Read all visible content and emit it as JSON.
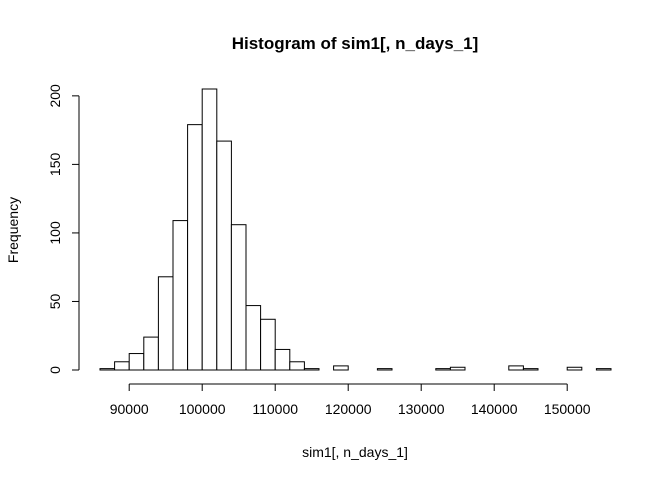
{
  "chart_data": {
    "type": "bar",
    "title": "Histogram of sim1[, n_days_1]",
    "xlabel": "sim1[, n_days_1]",
    "ylabel": "Frequency",
    "bin_width": 2000,
    "bins": [
      {
        "start": 86000,
        "end": 88000,
        "count": 1
      },
      {
        "start": 88000,
        "end": 90000,
        "count": 6
      },
      {
        "start": 90000,
        "end": 92000,
        "count": 12
      },
      {
        "start": 92000,
        "end": 94000,
        "count": 24
      },
      {
        "start": 94000,
        "end": 96000,
        "count": 68
      },
      {
        "start": 96000,
        "end": 98000,
        "count": 109
      },
      {
        "start": 98000,
        "end": 100000,
        "count": 179
      },
      {
        "start": 100000,
        "end": 102000,
        "count": 205
      },
      {
        "start": 102000,
        "end": 104000,
        "count": 167
      },
      {
        "start": 104000,
        "end": 106000,
        "count": 106
      },
      {
        "start": 106000,
        "end": 108000,
        "count": 47
      },
      {
        "start": 108000,
        "end": 110000,
        "count": 37
      },
      {
        "start": 110000,
        "end": 112000,
        "count": 15
      },
      {
        "start": 112000,
        "end": 114000,
        "count": 6
      },
      {
        "start": 114000,
        "end": 116000,
        "count": 1
      },
      {
        "start": 116000,
        "end": 118000,
        "count": 0
      },
      {
        "start": 118000,
        "end": 120000,
        "count": 3
      },
      {
        "start": 120000,
        "end": 122000,
        "count": 0
      },
      {
        "start": 122000,
        "end": 124000,
        "count": 0
      },
      {
        "start": 124000,
        "end": 126000,
        "count": 1
      },
      {
        "start": 126000,
        "end": 128000,
        "count": 0
      },
      {
        "start": 128000,
        "end": 130000,
        "count": 0
      },
      {
        "start": 130000,
        "end": 132000,
        "count": 0
      },
      {
        "start": 132000,
        "end": 134000,
        "count": 1
      },
      {
        "start": 134000,
        "end": 136000,
        "count": 2
      },
      {
        "start": 136000,
        "end": 138000,
        "count": 0
      },
      {
        "start": 138000,
        "end": 140000,
        "count": 0
      },
      {
        "start": 140000,
        "end": 142000,
        "count": 0
      },
      {
        "start": 142000,
        "end": 144000,
        "count": 3
      },
      {
        "start": 144000,
        "end": 146000,
        "count": 1
      },
      {
        "start": 146000,
        "end": 148000,
        "count": 0
      },
      {
        "start": 148000,
        "end": 150000,
        "count": 0
      },
      {
        "start": 150000,
        "end": 152000,
        "count": 2
      },
      {
        "start": 152000,
        "end": 154000,
        "count": 0
      },
      {
        "start": 154000,
        "end": 156000,
        "count": 1
      }
    ],
    "x_ticks": [
      {
        "value": 90000,
        "label": "90000"
      },
      {
        "value": 100000,
        "label": "100000"
      },
      {
        "value": 110000,
        "label": "110000"
      },
      {
        "value": 120000,
        "label": "120000"
      },
      {
        "value": 130000,
        "label": "130000"
      },
      {
        "value": 140000,
        "label": "140000"
      },
      {
        "value": 150000,
        "label": "150000"
      }
    ],
    "y_ticks": [
      {
        "value": 0,
        "label": "0"
      },
      {
        "value": 50,
        "label": "50"
      },
      {
        "value": 100,
        "label": "100"
      },
      {
        "value": 150,
        "label": "150"
      },
      {
        "value": 200,
        "label": "200"
      }
    ],
    "xlim": [
      86000,
      156000
    ],
    "ylim": [
      0,
      205
    ],
    "grid": false,
    "legend": "none"
  }
}
